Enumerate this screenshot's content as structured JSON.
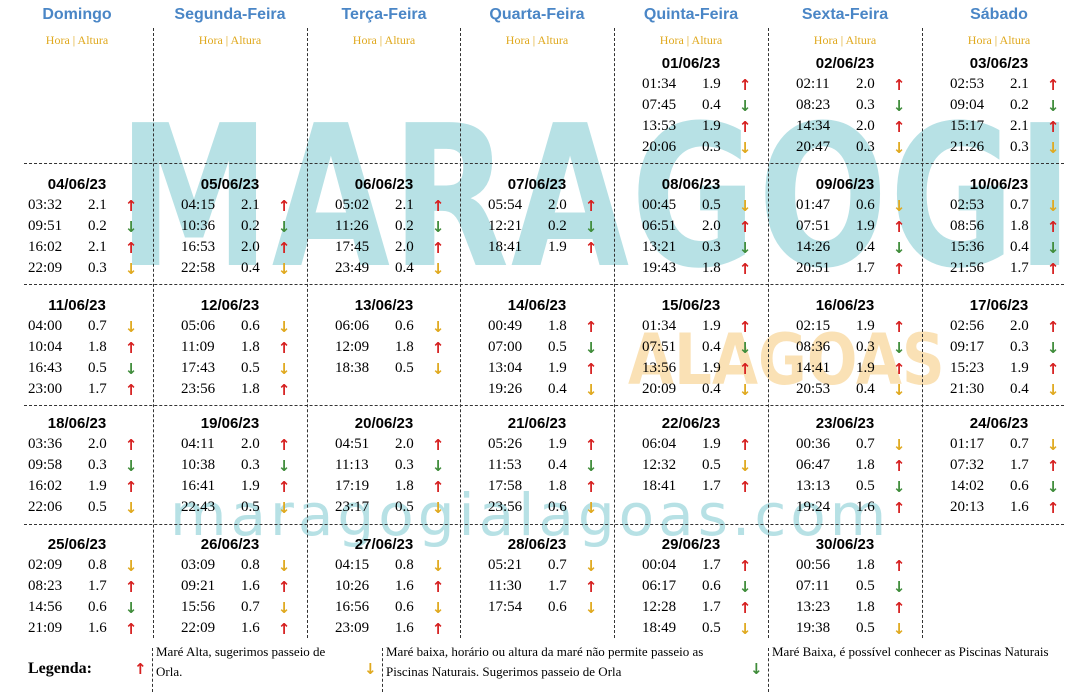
{
  "watermark": {
    "main": "MARAGOGI",
    "secondary": "ALAGOAS",
    "url": "maragogialagoas.com"
  },
  "header": {
    "days": [
      "Domingo",
      "Segunda-Feira",
      "Terça-Feira",
      "Quarta-Feira",
      "Quinta-Feira",
      "Sexta-Feira",
      "Sábado"
    ],
    "subtitle": "Hora | Altura"
  },
  "weeks": [
    [
      null,
      null,
      null,
      null,
      {
        "date": "01/06/23",
        "tides": [
          [
            "01:34",
            "1.9",
            "up"
          ],
          [
            "07:45",
            "0.4",
            "down-g"
          ],
          [
            "13:53",
            "1.9",
            "up"
          ],
          [
            "20:06",
            "0.3",
            "down-y"
          ]
        ]
      },
      {
        "date": "02/06/23",
        "tides": [
          [
            "02:11",
            "2.0",
            "up"
          ],
          [
            "08:23",
            "0.3",
            "down-g"
          ],
          [
            "14:34",
            "2.0",
            "up"
          ],
          [
            "20:47",
            "0.3",
            "down-y"
          ]
        ]
      },
      {
        "date": "03/06/23",
        "tides": [
          [
            "02:53",
            "2.1",
            "up"
          ],
          [
            "09:04",
            "0.2",
            "down-g"
          ],
          [
            "15:17",
            "2.1",
            "up"
          ],
          [
            "21:26",
            "0.3",
            "down-y"
          ]
        ]
      }
    ],
    [
      {
        "date": "04/06/23",
        "tides": [
          [
            "03:32",
            "2.1",
            "up"
          ],
          [
            "09:51",
            "0.2",
            "down-g"
          ],
          [
            "16:02",
            "2.1",
            "up"
          ],
          [
            "22:09",
            "0.3",
            "down-y"
          ]
        ]
      },
      {
        "date": "05/06/23",
        "tides": [
          [
            "04:15",
            "2.1",
            "up"
          ],
          [
            "10:36",
            "0.2",
            "down-g"
          ],
          [
            "16:53",
            "2.0",
            "up"
          ],
          [
            "22:58",
            "0.4",
            "down-y"
          ]
        ]
      },
      {
        "date": "06/06/23",
        "tides": [
          [
            "05:02",
            "2.1",
            "up"
          ],
          [
            "11:26",
            "0.2",
            "down-g"
          ],
          [
            "17:45",
            "2.0",
            "up"
          ],
          [
            "23:49",
            "0.4",
            "down-y"
          ]
        ]
      },
      {
        "date": "07/06/23",
        "tides": [
          [
            "05:54",
            "2.0",
            "up"
          ],
          [
            "12:21",
            "0.2",
            "down-g"
          ],
          [
            "18:41",
            "1.9",
            "up"
          ]
        ]
      },
      {
        "date": "08/06/23",
        "tides": [
          [
            "00:45",
            "0.5",
            "down-y"
          ],
          [
            "06:51",
            "2.0",
            "up"
          ],
          [
            "13:21",
            "0.3",
            "down-g"
          ],
          [
            "19:43",
            "1.8",
            "up"
          ]
        ]
      },
      {
        "date": "09/06/23",
        "tides": [
          [
            "01:47",
            "0.6",
            "down-y"
          ],
          [
            "07:51",
            "1.9",
            "up"
          ],
          [
            "14:26",
            "0.4",
            "down-g"
          ],
          [
            "20:51",
            "1.7",
            "up"
          ]
        ]
      },
      {
        "date": "10/06/23",
        "tides": [
          [
            "02:53",
            "0.7",
            "down-y"
          ],
          [
            "08:56",
            "1.8",
            "up"
          ],
          [
            "15:36",
            "0.4",
            "down-g"
          ],
          [
            "21:56",
            "1.7",
            "up"
          ]
        ]
      }
    ],
    [
      {
        "date": "11/06/23",
        "tides": [
          [
            "04:00",
            "0.7",
            "down-y"
          ],
          [
            "10:04",
            "1.8",
            "up"
          ],
          [
            "16:43",
            "0.5",
            "down-g"
          ],
          [
            "23:00",
            "1.7",
            "up"
          ]
        ]
      },
      {
        "date": "12/06/23",
        "tides": [
          [
            "05:06",
            "0.6",
            "down-y"
          ],
          [
            "11:09",
            "1.8",
            "up"
          ],
          [
            "17:43",
            "0.5",
            "down-y"
          ],
          [
            "23:56",
            "1.8",
            "up"
          ]
        ]
      },
      {
        "date": "13/06/23",
        "tides": [
          [
            "06:06",
            "0.6",
            "down-y"
          ],
          [
            "12:09",
            "1.8",
            "up"
          ],
          [
            "18:38",
            "0.5",
            "down-y"
          ]
        ]
      },
      {
        "date": "14/06/23",
        "tides": [
          [
            "00:49",
            "1.8",
            "up"
          ],
          [
            "07:00",
            "0.5",
            "down-g"
          ],
          [
            "13:04",
            "1.9",
            "up"
          ],
          [
            "19:26",
            "0.4",
            "down-y"
          ]
        ]
      },
      {
        "date": "15/06/23",
        "tides": [
          [
            "01:34",
            "1.9",
            "up"
          ],
          [
            "07:51",
            "0.4",
            "down-g"
          ],
          [
            "13:56",
            "1.9",
            "up"
          ],
          [
            "20:09",
            "0.4",
            "down-y"
          ]
        ]
      },
      {
        "date": "16/06/23",
        "tides": [
          [
            "02:15",
            "1.9",
            "up"
          ],
          [
            "08:36",
            "0.3",
            "down-g"
          ],
          [
            "14:41",
            "1.9",
            "up"
          ],
          [
            "20:53",
            "0.4",
            "down-y"
          ]
        ]
      },
      {
        "date": "17/06/23",
        "tides": [
          [
            "02:56",
            "2.0",
            "up"
          ],
          [
            "09:17",
            "0.3",
            "down-g"
          ],
          [
            "15:23",
            "1.9",
            "up"
          ],
          [
            "21:30",
            "0.4",
            "down-y"
          ]
        ]
      }
    ],
    [
      {
        "date": "18/06/23",
        "tides": [
          [
            "03:36",
            "2.0",
            "up"
          ],
          [
            "09:58",
            "0.3",
            "down-g"
          ],
          [
            "16:02",
            "1.9",
            "up"
          ],
          [
            "22:06",
            "0.5",
            "down-y"
          ]
        ]
      },
      {
        "date": "19/06/23",
        "tides": [
          [
            "04:11",
            "2.0",
            "up"
          ],
          [
            "10:38",
            "0.3",
            "down-g"
          ],
          [
            "16:41",
            "1.9",
            "up"
          ],
          [
            "22:43",
            "0.5",
            "down-y"
          ]
        ]
      },
      {
        "date": "20/06/23",
        "tides": [
          [
            "04:51",
            "2.0",
            "up"
          ],
          [
            "11:13",
            "0.3",
            "down-g"
          ],
          [
            "17:19",
            "1.8",
            "up"
          ],
          [
            "23:17",
            "0.5",
            "down-y"
          ]
        ]
      },
      {
        "date": "21/06/23",
        "tides": [
          [
            "05:26",
            "1.9",
            "up"
          ],
          [
            "11:53",
            "0.4",
            "down-g"
          ],
          [
            "17:58",
            "1.8",
            "up"
          ],
          [
            "23:56",
            "0.6",
            "down-y"
          ]
        ]
      },
      {
        "date": "22/06/23",
        "tides": [
          [
            "06:04",
            "1.9",
            "up"
          ],
          [
            "12:32",
            "0.5",
            "down-y"
          ],
          [
            "18:41",
            "1.7",
            "up"
          ]
        ]
      },
      {
        "date": "23/06/23",
        "tides": [
          [
            "00:36",
            "0.7",
            "down-y"
          ],
          [
            "06:47",
            "1.8",
            "up"
          ],
          [
            "13:13",
            "0.5",
            "down-g"
          ],
          [
            "19:24",
            "1.6",
            "up"
          ]
        ]
      },
      {
        "date": "24/06/23",
        "tides": [
          [
            "01:17",
            "0.7",
            "down-y"
          ],
          [
            "07:32",
            "1.7",
            "up"
          ],
          [
            "14:02",
            "0.6",
            "down-g"
          ],
          [
            "20:13",
            "1.6",
            "up"
          ]
        ]
      }
    ],
    [
      {
        "date": "25/06/23",
        "tides": [
          [
            "02:09",
            "0.8",
            "down-y"
          ],
          [
            "08:23",
            "1.7",
            "up"
          ],
          [
            "14:56",
            "0.6",
            "down-g"
          ],
          [
            "21:09",
            "1.6",
            "up"
          ]
        ]
      },
      {
        "date": "26/06/23",
        "tides": [
          [
            "03:09",
            "0.8",
            "down-y"
          ],
          [
            "09:21",
            "1.6",
            "up"
          ],
          [
            "15:56",
            "0.7",
            "down-y"
          ],
          [
            "22:09",
            "1.6",
            "up"
          ]
        ]
      },
      {
        "date": "27/06/23",
        "tides": [
          [
            "04:15",
            "0.8",
            "down-y"
          ],
          [
            "10:26",
            "1.6",
            "up"
          ],
          [
            "16:56",
            "0.6",
            "down-y"
          ],
          [
            "23:09",
            "1.6",
            "up"
          ]
        ]
      },
      {
        "date": "28/06/23",
        "tides": [
          [
            "05:21",
            "0.7",
            "down-y"
          ],
          [
            "11:30",
            "1.7",
            "up"
          ],
          [
            "17:54",
            "0.6",
            "down-y"
          ]
        ]
      },
      {
        "date": "29/06/23",
        "tides": [
          [
            "00:04",
            "1.7",
            "up"
          ],
          [
            "06:17",
            "0.6",
            "down-g"
          ],
          [
            "12:28",
            "1.7",
            "up"
          ],
          [
            "18:49",
            "0.5",
            "down-y"
          ]
        ]
      },
      {
        "date": "30/06/23",
        "tides": [
          [
            "00:56",
            "1.8",
            "up"
          ],
          [
            "07:11",
            "0.5",
            "down-g"
          ],
          [
            "13:23",
            "1.8",
            "up"
          ],
          [
            "19:38",
            "0.5",
            "down-y"
          ]
        ]
      },
      null
    ]
  ],
  "arrows": {
    "up": "↑",
    "down-y": "↓",
    "down-g": "↓"
  },
  "colors": {
    "header": "#4a86c6",
    "subtitle": "#e0a91f",
    "up": "#d62020",
    "down_yellow": "#e0a91f",
    "down_green": "#3f8c3a"
  },
  "legend": {
    "title": "Legenda:",
    "items": [
      {
        "arrow": "up",
        "text": "Maré Alta, sugerimos passeio de Orla."
      },
      {
        "arrow": "down-y",
        "text": "Maré baixa, horário ou altura da maré não permite passeio as Piscinas Naturais. Sugerimos passeio de Orla"
      },
      {
        "arrow": "down-g",
        "text": "Maré Baixa, é possível conhecer as Piscinas Naturais"
      }
    ]
  }
}
